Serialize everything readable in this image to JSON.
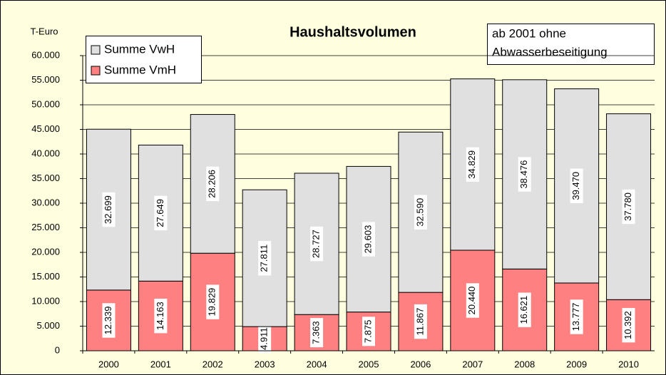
{
  "chart_data": {
    "type": "stacked_bar",
    "title": "Haushaltsvolumen",
    "y_label": "T-Euro",
    "annotation": [
      "ab 2001 ohne",
      "Abwasserbeseitigung"
    ],
    "categories": [
      "2000",
      "2001",
      "2002",
      "2003",
      "2004",
      "2005",
      "2006",
      "2007",
      "2008",
      "2009",
      "2010"
    ],
    "series": [
      {
        "name": "Summe VwH",
        "color": "#e0e0e0",
        "values": [
          32699,
          27649,
          28206,
          27811,
          28727,
          29603,
          32590,
          34829,
          38476,
          39470,
          37780
        ],
        "value_labels": [
          "32.699",
          "27.649",
          "28.206",
          "27.811",
          "28.727",
          "29.603",
          "32.590",
          "34.829",
          "38.476",
          "39.470",
          "37.780"
        ]
      },
      {
        "name": "Summe VmH",
        "color": "#ff8080",
        "values": [
          12339,
          14163,
          19829,
          4911,
          7363,
          7875,
          11867,
          20440,
          16621,
          13777,
          10392
        ],
        "value_labels": [
          "12.339",
          "14.163",
          "19.829",
          "4.911",
          "7.363",
          "7.875",
          "11.867",
          "20.440",
          "16.621",
          "13.777",
          "10.392"
        ]
      }
    ],
    "ylim": [
      0,
      60000
    ],
    "yticks": [
      0,
      {
        "value": 5000,
        "label": "5.000"
      },
      {
        "value": 10000,
        "label": "10.000"
      },
      {
        "value": 15000,
        "label": "15.000"
      },
      {
        "value": 20000,
        "label": "20.000"
      },
      {
        "value": 25000,
        "label": "25.000"
      },
      {
        "value": 30000,
        "label": "30.000"
      },
      {
        "value": 35000,
        "label": "35.000"
      },
      {
        "value": 40000,
        "label": "40.000"
      },
      {
        "value": 45000,
        "label": "45.000"
      },
      {
        "value": 50000,
        "label": "50.000"
      },
      {
        "value": 55000,
        "label": "55.000"
      },
      {
        "value": 60000,
        "label": "60.000"
      }
    ],
    "grid": true
  }
}
